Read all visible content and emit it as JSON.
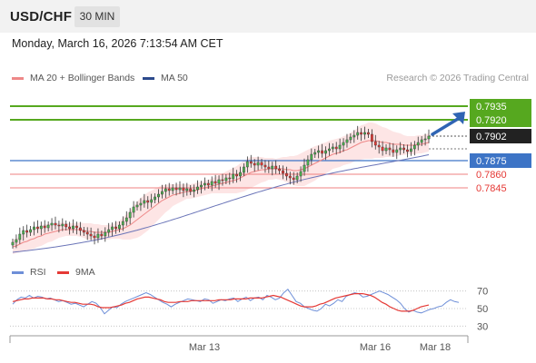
{
  "header": {
    "symbol": "USD/CHF",
    "timeframe": "30 MIN",
    "datetime": "Monday, March 16, 2026 7:13:54 AM CET"
  },
  "legend": {
    "ma20_label": "MA 20 + Bollinger Bands",
    "ma50_label": "MA 50",
    "credit": "Research © 2026 Trading Central"
  },
  "rsi_legend": {
    "rsi_label": "RSI",
    "ma_label": "9MA"
  },
  "colors": {
    "candle_up": "#4caf50",
    "candle_down": "#e53935",
    "ma20": "#ee8888",
    "ma50": "#6b75b8",
    "bollinger_fill": "#fde5e5",
    "resistance": "#56a81f",
    "support": "#ef8080",
    "pivot": "#3d74c6",
    "current": "#222222",
    "rsi": "#6e8fd8",
    "rsi_ma": "#e53935",
    "arrow": "#2f64b3"
  },
  "chart_data": [
    {
      "type": "candlestick",
      "title": "USD/CHF 30 MIN",
      "ylim": [
        0.777,
        0.7955
      ],
      "x_ticks": [
        "Mar 13",
        "Mar 16",
        "Mar 18"
      ],
      "series": [
        {
          "name": "MA 20 + Bollinger Bands"
        },
        {
          "name": "MA 50"
        }
      ],
      "price_closes": [
        0.7785,
        0.7788,
        0.7794,
        0.7798,
        0.7796,
        0.7799,
        0.7802,
        0.78,
        0.7803,
        0.7801,
        0.7804,
        0.7806,
        0.7804,
        0.7803,
        0.7805,
        0.7802,
        0.78,
        0.7803,
        0.7801,
        0.7798,
        0.7796,
        0.7794,
        0.7792,
        0.779,
        0.7794,
        0.7792,
        0.7796,
        0.7799,
        0.7802,
        0.78,
        0.7804,
        0.7808,
        0.7812,
        0.7818,
        0.7824,
        0.7826,
        0.7828,
        0.7831,
        0.7829,
        0.7832,
        0.7835,
        0.7838,
        0.7841,
        0.7844,
        0.7842,
        0.7845,
        0.7843,
        0.7845,
        0.7842,
        0.7844,
        0.7841,
        0.7843,
        0.7846,
        0.7848,
        0.785,
        0.7848,
        0.7852,
        0.785,
        0.7854,
        0.7853,
        0.7856,
        0.7855,
        0.786,
        0.7858,
        0.7862,
        0.7868,
        0.7874,
        0.7872,
        0.787,
        0.7873,
        0.787,
        0.7868,
        0.7866,
        0.7869,
        0.7866,
        0.7864,
        0.7861,
        0.7858,
        0.7856,
        0.7854,
        0.7858,
        0.7863,
        0.787,
        0.7876,
        0.7882,
        0.7884,
        0.7886,
        0.7883,
        0.7886,
        0.7888,
        0.789,
        0.7888,
        0.7892,
        0.7895,
        0.7898,
        0.7901,
        0.7903,
        0.7906,
        0.7904,
        0.7906,
        0.7904,
        0.7896,
        0.7892,
        0.789,
        0.7886,
        0.7889,
        0.7887,
        0.7884,
        0.7887,
        0.7889,
        0.7887,
        0.7885,
        0.7888,
        0.7892,
        0.7895,
        0.7898,
        0.7899,
        0.7902
      ],
      "ma20": [
        0.778,
        0.7781,
        0.7783,
        0.7785,
        0.7786,
        0.7788,
        0.7789,
        0.7791,
        0.7792,
        0.7794,
        0.7795,
        0.7796,
        0.7797,
        0.7798,
        0.7799,
        0.7799,
        0.7799,
        0.7799,
        0.7799,
        0.7799,
        0.7798,
        0.7797,
        0.7797,
        0.7796,
        0.7796,
        0.7796,
        0.7796,
        0.7796,
        0.7797,
        0.7798,
        0.7799,
        0.78,
        0.7802,
        0.7804,
        0.7807,
        0.781,
        0.7813,
        0.7816,
        0.7819,
        0.7822,
        0.7825,
        0.7828,
        0.7831,
        0.7833,
        0.7835,
        0.7837,
        0.7838,
        0.7839,
        0.784,
        0.7841,
        0.7841,
        0.7842,
        0.7843,
        0.7844,
        0.7845,
        0.7846,
        0.7847,
        0.7848,
        0.7849,
        0.785,
        0.7851,
        0.7852,
        0.7853,
        0.7854,
        0.7856,
        0.7858,
        0.786,
        0.7862,
        0.7863,
        0.7864,
        0.7865,
        0.7865,
        0.7866,
        0.7866,
        0.7866,
        0.7866,
        0.7866,
        0.7865,
        0.7865,
        0.7864,
        0.7864,
        0.7865,
        0.7866,
        0.7868,
        0.787,
        0.7872,
        0.7874,
        0.7876,
        0.7878,
        0.788,
        0.7882,
        0.7883,
        0.7884,
        0.7886,
        0.7887,
        0.7889,
        0.7891,
        0.7893,
        0.7895,
        0.7896,
        0.7897,
        0.7897,
        0.7897,
        0.7896,
        0.7895,
        0.7895,
        0.7894,
        0.7893,
        0.7893,
        0.7893,
        0.7892,
        0.7892,
        0.7892,
        0.7892,
        0.7893,
        0.7893,
        0.7894,
        0.7895
      ],
      "bb_half_width": [
        0.0008,
        0.0008,
        0.0009,
        0.001,
        0.001,
        0.0011,
        0.0011,
        0.0011,
        0.0011,
        0.0011,
        0.001,
        0.001,
        0.0009,
        0.0008,
        0.0008,
        0.0007,
        0.0007,
        0.0007,
        0.0007,
        0.0008,
        0.0008,
        0.0009,
        0.0009,
        0.0009,
        0.0009,
        0.0008,
        0.0008,
        0.0008,
        0.0008,
        0.0009,
        0.001,
        0.0012,
        0.0014,
        0.0016,
        0.0018,
        0.002,
        0.0021,
        0.0021,
        0.0021,
        0.002,
        0.0019,
        0.0018,
        0.0017,
        0.0015,
        0.0014,
        0.0012,
        0.0011,
        0.001,
        0.0009,
        0.0008,
        0.0008,
        0.0008,
        0.0008,
        0.0008,
        0.0008,
        0.0008,
        0.0008,
        0.0009,
        0.001,
        0.0011,
        0.0012,
        0.0013,
        0.0014,
        0.0015,
        0.0016,
        0.0017,
        0.0017,
        0.0017,
        0.0016,
        0.0015,
        0.0014,
        0.0013,
        0.0012,
        0.0012,
        0.0011,
        0.0012,
        0.0013,
        0.0014,
        0.0015,
        0.0016,
        0.0017,
        0.0018,
        0.0019,
        0.0019,
        0.0019,
        0.0019,
        0.0018,
        0.0018,
        0.0017,
        0.0017,
        0.0016,
        0.0016,
        0.0016,
        0.0016,
        0.0016,
        0.0017,
        0.0017,
        0.0018,
        0.0019,
        0.0019,
        0.002,
        0.002,
        0.0019,
        0.0018,
        0.0017,
        0.0016,
        0.0015,
        0.0014,
        0.0013,
        0.0012,
        0.0011,
        0.001,
        0.001,
        0.001,
        0.001,
        0.001,
        0.001,
        0.001
      ],
      "ma50_start": 0.7774,
      "ma50_end": 0.7885,
      "levels": [
        {
          "label": "0.7935",
          "value": 0.7935,
          "kind": "resistance"
        },
        {
          "label": "0.7920",
          "value": 0.792,
          "kind": "resistance"
        },
        {
          "label": "0.7902",
          "value": 0.7902,
          "kind": "current"
        },
        {
          "label": "0.7875",
          "value": 0.7875,
          "kind": "pivot"
        },
        {
          "label": "0.7860",
          "value": 0.786,
          "kind": "support"
        },
        {
          "label": "0.7845",
          "value": 0.7845,
          "kind": "support"
        }
      ]
    },
    {
      "type": "line",
      "title": "RSI",
      "ylim": [
        20,
        80
      ],
      "y_ticks": [
        "70",
        "50",
        "30"
      ],
      "series": [
        {
          "name": "RSI",
          "values": [
            55,
            60,
            63,
            62,
            65,
            62,
            64,
            63,
            61,
            62,
            60,
            58,
            59,
            57,
            55,
            56,
            54,
            52,
            55,
            58,
            56,
            51,
            44,
            48,
            52,
            51,
            55,
            58,
            60,
            62,
            64,
            66,
            68,
            66,
            63,
            60,
            57,
            55,
            52,
            55,
            57,
            59,
            61,
            60,
            59,
            58,
            61,
            60,
            56,
            58,
            60,
            59,
            61,
            62,
            58,
            61,
            63,
            59,
            62,
            63,
            60,
            65,
            63,
            60,
            62,
            68,
            72,
            65,
            58,
            56,
            52,
            50,
            48,
            47,
            50,
            55,
            53,
            56,
            60,
            58,
            64,
            66,
            68,
            67,
            63,
            64,
            66,
            68,
            70,
            68,
            66,
            63,
            60,
            56,
            50,
            46,
            48,
            46,
            45,
            47,
            49,
            50,
            52,
            53,
            57,
            60,
            58,
            57
          ]
        },
        {
          "name": "9MA",
          "values": [
            58,
            59,
            60,
            61,
            61,
            62,
            62,
            62,
            62,
            61,
            61,
            60,
            60,
            59,
            58,
            57,
            57,
            56,
            55,
            55,
            55,
            54,
            52,
            51,
            51,
            51,
            52,
            53,
            54,
            56,
            57,
            59,
            61,
            62,
            63,
            63,
            62,
            61,
            60,
            58,
            57,
            57,
            57,
            58,
            58,
            58,
            59,
            59,
            59,
            59,
            59,
            59,
            59,
            60,
            60,
            60,
            60,
            61,
            61,
            61,
            61,
            62,
            62,
            62,
            62,
            63,
            64,
            65,
            64,
            63,
            61,
            59,
            57,
            55,
            53,
            52,
            52,
            52,
            53,
            55,
            56,
            58,
            60,
            62,
            63,
            64,
            65,
            66,
            67,
            67,
            67,
            66,
            65,
            63,
            60,
            57,
            55,
            52,
            50,
            48,
            47,
            47,
            47,
            48,
            50,
            52,
            53,
            54
          ]
        }
      ]
    }
  ]
}
